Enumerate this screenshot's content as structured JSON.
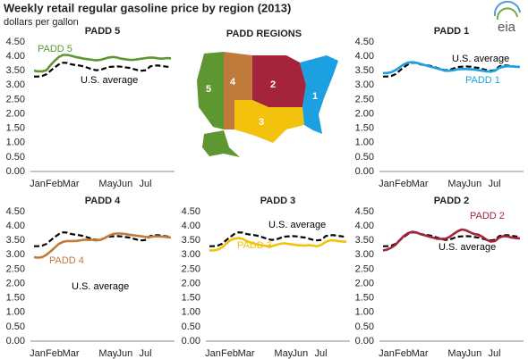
{
  "title": "Weekly retail regular gasoline price by region (2013)",
  "subtitle": "dollars per gallon",
  "logo": "eia",
  "map": {
    "title": "PADD REGIONS",
    "labels": [
      "5",
      "4",
      "2",
      "3",
      "1"
    ]
  },
  "chart_data": [
    {
      "type": "line",
      "title": "PADD 5",
      "grid": false,
      "ylim": [
        0,
        4.5
      ],
      "yticks": [
        {
          "value": 0,
          "label": "0.00"
        },
        {
          "value": 0.5,
          "label": "0.50"
        },
        {
          "value": 1,
          "label": "1.00"
        },
        {
          "value": 1.5,
          "label": "1.50"
        },
        {
          "value": 2,
          "label": "2.00"
        },
        {
          "value": 2.5,
          "label": "2.50"
        },
        {
          "value": 3,
          "label": "3.00"
        },
        {
          "value": 3.5,
          "label": "3.50"
        },
        {
          "value": 4,
          "label": "4.00"
        },
        {
          "value": 4.5,
          "label": "4.50"
        }
      ],
      "categories": [
        "Jan",
        null,
        null,
        null,
        "Feb",
        null,
        null,
        null,
        "Mar",
        null,
        null,
        null,
        null,
        null,
        null,
        null,
        null,
        "May",
        null,
        null,
        null,
        "Jun",
        null,
        null,
        null,
        null,
        "Jul",
        null,
        null,
        null,
        null,
        null,
        null,
        null
      ],
      "series": [
        {
          "name": "PADD 5",
          "color": "#5e9732",
          "values": [
            3.5,
            3.48,
            3.48,
            3.52,
            3.7,
            3.85,
            3.98,
            4.05,
            4.05,
            4.02,
            3.98,
            3.95,
            3.92,
            3.9,
            3.88,
            3.86,
            3.88,
            3.92,
            3.96,
            3.98,
            3.96,
            3.92,
            3.9,
            3.88,
            3.88,
            3.9,
            3.92,
            3.94,
            3.96,
            3.95,
            3.93,
            3.92,
            3.94,
            3.93
          ]
        },
        {
          "name": "U.S. average",
          "color": "#000000",
          "dashed": true,
          "values": [
            3.3,
            3.3,
            3.32,
            3.38,
            3.5,
            3.62,
            3.72,
            3.78,
            3.77,
            3.72,
            3.7,
            3.68,
            3.65,
            3.6,
            3.55,
            3.52,
            3.53,
            3.58,
            3.63,
            3.64,
            3.65,
            3.64,
            3.62,
            3.6,
            3.56,
            3.52,
            3.5,
            3.52,
            3.65,
            3.68,
            3.68,
            3.66,
            3.64,
            3.63
          ]
        }
      ]
    },
    {
      "type": "line",
      "title": "PADD 1",
      "grid": false,
      "ylim": [
        0,
        4.5
      ],
      "yticks": [
        {
          "value": 0,
          "label": "0.00"
        },
        {
          "value": 0.5,
          "label": "0.50"
        },
        {
          "value": 1,
          "label": "1.00"
        },
        {
          "value": 1.5,
          "label": "1.50"
        },
        {
          "value": 2,
          "label": "2.00"
        },
        {
          "value": 2.5,
          "label": "2.50"
        },
        {
          "value": 3,
          "label": "3.00"
        },
        {
          "value": 3.5,
          "label": "3.50"
        },
        {
          "value": 4,
          "label": "4.00"
        },
        {
          "value": 4.5,
          "label": "4.50"
        }
      ],
      "categories": [
        "Jan",
        null,
        null,
        null,
        "Feb",
        null,
        null,
        null,
        "Mar",
        null,
        null,
        null,
        null,
        null,
        null,
        null,
        null,
        "May",
        null,
        null,
        null,
        "Jun",
        null,
        null,
        null,
        null,
        "Jul",
        null,
        null,
        null,
        null,
        null,
        null,
        null
      ],
      "series": [
        {
          "name": "PADD 1",
          "color": "#1ba1e2",
          "values": [
            3.42,
            3.42,
            3.45,
            3.52,
            3.62,
            3.72,
            3.78,
            3.8,
            3.78,
            3.74,
            3.7,
            3.66,
            3.62,
            3.58,
            3.54,
            3.5,
            3.5,
            3.52,
            3.55,
            3.56,
            3.56,
            3.55,
            3.54,
            3.52,
            3.5,
            3.48,
            3.47,
            3.5,
            3.6,
            3.64,
            3.66,
            3.65,
            3.64,
            3.63
          ]
        },
        {
          "name": "U.S. average",
          "color": "#000000",
          "dashed": true,
          "values": [
            3.3,
            3.3,
            3.32,
            3.38,
            3.5,
            3.62,
            3.72,
            3.78,
            3.77,
            3.72,
            3.7,
            3.68,
            3.65,
            3.6,
            3.55,
            3.52,
            3.53,
            3.58,
            3.63,
            3.64,
            3.65,
            3.64,
            3.62,
            3.6,
            3.56,
            3.52,
            3.5,
            3.52,
            3.65,
            3.68,
            3.68,
            3.66,
            3.64,
            3.63
          ]
        }
      ]
    },
    {
      "type": "line",
      "title": "PADD 4",
      "grid": false,
      "ylim": [
        0,
        4.5
      ],
      "yticks": [
        {
          "value": 0,
          "label": "0.00"
        },
        {
          "value": 0.5,
          "label": "0.50"
        },
        {
          "value": 1,
          "label": "1.00"
        },
        {
          "value": 1.5,
          "label": "1.50"
        },
        {
          "value": 2,
          "label": "2.00"
        },
        {
          "value": 2.5,
          "label": "2.50"
        },
        {
          "value": 3,
          "label": "3.00"
        },
        {
          "value": 3.5,
          "label": "3.50"
        },
        {
          "value": 4,
          "label": "4.00"
        },
        {
          "value": 4.5,
          "label": "4.50"
        }
      ],
      "categories": [
        "Jan",
        null,
        null,
        null,
        "Feb",
        null,
        null,
        null,
        "Mar",
        null,
        null,
        null,
        null,
        null,
        null,
        null,
        null,
        "May",
        null,
        null,
        null,
        "Jun",
        null,
        null,
        null,
        null,
        "Jul",
        null,
        null,
        null,
        null,
        null,
        null,
        null
      ],
      "series": [
        {
          "name": "PADD 4",
          "color": "#c07a3b",
          "values": [
            2.92,
            2.9,
            2.92,
            3.0,
            3.12,
            3.25,
            3.38,
            3.45,
            3.48,
            3.48,
            3.48,
            3.5,
            3.52,
            3.52,
            3.52,
            3.5,
            3.52,
            3.58,
            3.66,
            3.72,
            3.74,
            3.74,
            3.72,
            3.7,
            3.68,
            3.66,
            3.64,
            3.62,
            3.62,
            3.64,
            3.64,
            3.63,
            3.62,
            3.6
          ]
        },
        {
          "name": "U.S. average",
          "color": "#000000",
          "dashed": true,
          "values": [
            3.3,
            3.3,
            3.32,
            3.38,
            3.5,
            3.62,
            3.72,
            3.78,
            3.77,
            3.72,
            3.7,
            3.68,
            3.65,
            3.6,
            3.55,
            3.52,
            3.53,
            3.58,
            3.63,
            3.64,
            3.65,
            3.64,
            3.62,
            3.6,
            3.56,
            3.52,
            3.5,
            3.52,
            3.65,
            3.68,
            3.68,
            3.66,
            3.64,
            3.63
          ]
        }
      ]
    },
    {
      "type": "line",
      "title": "PADD 3",
      "grid": false,
      "ylim": [
        0,
        4.5
      ],
      "yticks": [
        {
          "value": 0,
          "label": "0.00"
        },
        {
          "value": 0.5,
          "label": "0.50"
        },
        {
          "value": 1,
          "label": "1.00"
        },
        {
          "value": 1.5,
          "label": "1.50"
        },
        {
          "value": 2,
          "label": "2.00"
        },
        {
          "value": 2.5,
          "label": "2.50"
        },
        {
          "value": 3,
          "label": "3.00"
        },
        {
          "value": 3.5,
          "label": "3.50"
        },
        {
          "value": 4,
          "label": "4.00"
        },
        {
          "value": 4.5,
          "label": "4.50"
        }
      ],
      "categories": [
        "Jan",
        null,
        null,
        null,
        "Feb",
        null,
        null,
        null,
        "Mar",
        null,
        null,
        null,
        null,
        null,
        null,
        null,
        null,
        "May",
        null,
        null,
        null,
        "Jun",
        null,
        null,
        null,
        null,
        "Jul",
        null,
        null,
        null,
        null,
        null,
        null,
        null
      ],
      "series": [
        {
          "name": "PADD 3",
          "color": "#f2c20d",
          "values": [
            3.15,
            3.15,
            3.18,
            3.25,
            3.38,
            3.5,
            3.56,
            3.58,
            3.55,
            3.48,
            3.42,
            3.38,
            3.35,
            3.32,
            3.3,
            3.3,
            3.34,
            3.38,
            3.4,
            3.38,
            3.36,
            3.34,
            3.33,
            3.32,
            3.34,
            3.32,
            3.3,
            3.35,
            3.45,
            3.5,
            3.5,
            3.48,
            3.46,
            3.45
          ]
        },
        {
          "name": "U.S. average",
          "color": "#000000",
          "dashed": true,
          "values": [
            3.3,
            3.3,
            3.32,
            3.38,
            3.5,
            3.62,
            3.72,
            3.78,
            3.77,
            3.72,
            3.7,
            3.68,
            3.65,
            3.6,
            3.55,
            3.52,
            3.53,
            3.58,
            3.63,
            3.64,
            3.65,
            3.64,
            3.62,
            3.6,
            3.56,
            3.52,
            3.5,
            3.52,
            3.65,
            3.68,
            3.68,
            3.66,
            3.64,
            3.63
          ]
        }
      ]
    },
    {
      "type": "line",
      "title": "PADD 2",
      "grid": false,
      "ylim": [
        0,
        4.5
      ],
      "yticks": [
        {
          "value": 0,
          "label": "0.00"
        },
        {
          "value": 0.5,
          "label": "0.50"
        },
        {
          "value": 1,
          "label": "1.00"
        },
        {
          "value": 1.5,
          "label": "1.50"
        },
        {
          "value": 2,
          "label": "2.00"
        },
        {
          "value": 2.5,
          "label": "2.50"
        },
        {
          "value": 3,
          "label": "3.00"
        },
        {
          "value": 3.5,
          "label": "3.50"
        },
        {
          "value": 4,
          "label": "4.00"
        },
        {
          "value": 4.5,
          "label": "4.50"
        }
      ],
      "categories": [
        "Jan",
        null,
        null,
        null,
        "Feb",
        null,
        null,
        null,
        "Mar",
        null,
        null,
        null,
        null,
        null,
        null,
        null,
        null,
        "May",
        null,
        null,
        null,
        "Jun",
        null,
        null,
        null,
        null,
        "Jul",
        null,
        null,
        null,
        null,
        null,
        null,
        null
      ],
      "series": [
        {
          "name": "PADD 2",
          "color": "#a3243b",
          "values": [
            3.15,
            3.18,
            3.25,
            3.35,
            3.5,
            3.65,
            3.75,
            3.8,
            3.78,
            3.72,
            3.68,
            3.64,
            3.6,
            3.56,
            3.55,
            3.56,
            3.62,
            3.72,
            3.82,
            3.88,
            3.85,
            3.78,
            3.72,
            3.7,
            3.62,
            3.52,
            3.46,
            3.48,
            3.6,
            3.65,
            3.64,
            3.6,
            3.58,
            3.57
          ]
        },
        {
          "name": "U.S. average",
          "color": "#000000",
          "dashed": true,
          "values": [
            3.3,
            3.3,
            3.32,
            3.38,
            3.5,
            3.62,
            3.72,
            3.78,
            3.77,
            3.72,
            3.7,
            3.68,
            3.65,
            3.6,
            3.55,
            3.52,
            3.53,
            3.58,
            3.63,
            3.64,
            3.65,
            3.64,
            3.62,
            3.6,
            3.56,
            3.52,
            3.5,
            3.52,
            3.65,
            3.68,
            3.68,
            3.66,
            3.64,
            3.63
          ]
        }
      ]
    }
  ]
}
